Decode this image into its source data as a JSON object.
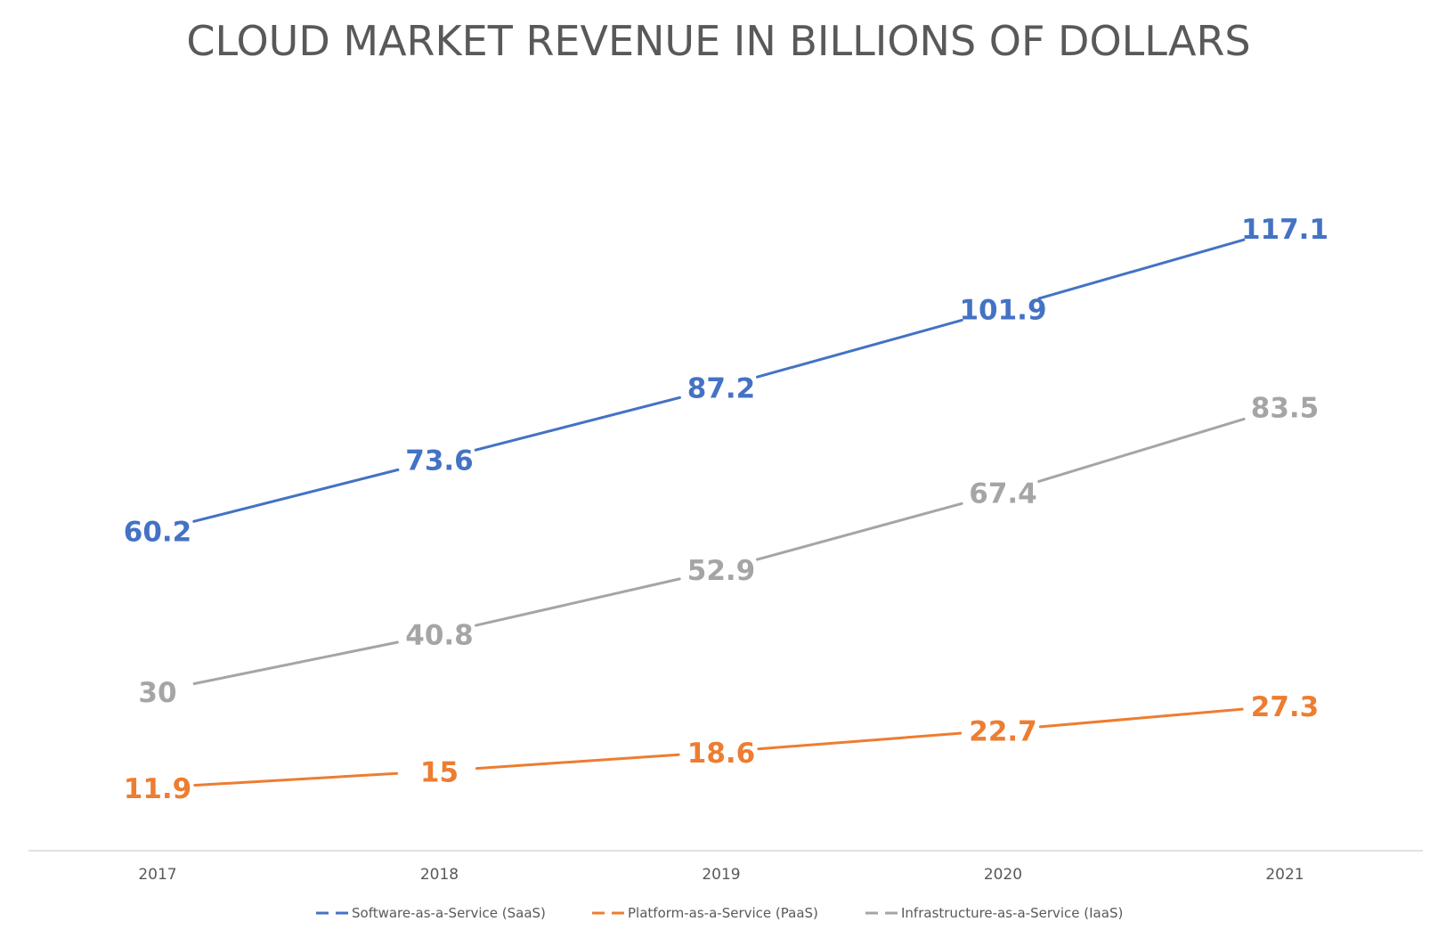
{
  "chart_data": {
    "type": "line",
    "title": "CLOUD MARKET REVENUE IN BILLIONS OF DOLLARS",
    "xlabel": "",
    "ylabel": "",
    "categories": [
      "2017",
      "2018",
      "2019",
      "2020",
      "2021"
    ],
    "ylim": [
      0,
      140
    ],
    "grid": false,
    "legend": "bottom",
    "series": [
      {
        "name": "Software-as-a-Service (SaaS)",
        "color": "#4472C4",
        "values": [
          60.2,
          73.6,
          87.2,
          101.9,
          117.1
        ],
        "labels": [
          "60.2",
          "73.6",
          "87.2",
          "101.9",
          "117.1"
        ]
      },
      {
        "name": "Platform-as-a-Service (PaaS)",
        "color": "#ED7D31",
        "values": [
          11.9,
          15,
          18.6,
          22.7,
          27.3
        ],
        "labels": [
          "11.9",
          "15",
          "18.6",
          "22.7",
          "27.3"
        ]
      },
      {
        "name": "Infrastructure-as-a-Service (IaaS)",
        "color": "#A5A5A5",
        "values": [
          30,
          40.8,
          52.9,
          67.4,
          83.5
        ],
        "labels": [
          "30",
          "40.8",
          "52.9",
          "67.4",
          "83.5"
        ]
      }
    ]
  }
}
